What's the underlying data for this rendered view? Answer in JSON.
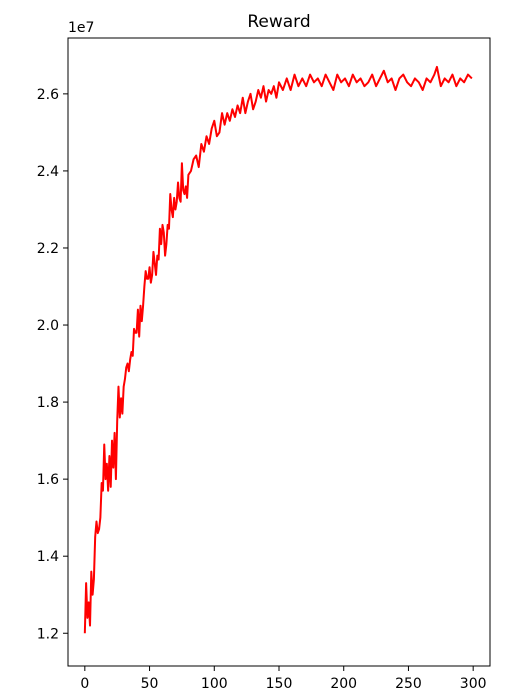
{
  "chart_data": {
    "type": "line",
    "title": "Reward",
    "xlabel": "",
    "ylabel": "",
    "y_scale_label": "1e7",
    "y_scale_factor": 10000000,
    "xlim": [
      -13,
      313
    ],
    "ylim": [
      1.115,
      2.745
    ],
    "x_ticks": [
      0,
      50,
      100,
      150,
      200,
      250,
      300
    ],
    "y_ticks": [
      1.2,
      1.4,
      1.6,
      1.8,
      2.0,
      2.2,
      2.4,
      2.6
    ],
    "x_tick_labels": [
      "0",
      "50",
      "100",
      "150",
      "200",
      "250",
      "300"
    ],
    "y_tick_labels": [
      "1.2",
      "1.4",
      "1.6",
      "1.8",
      "2.0",
      "2.2",
      "2.4",
      "2.6"
    ],
    "grid": false,
    "legend": "none",
    "series": [
      {
        "color": "#ff0000",
        "x": [
          0,
          1,
          2,
          3,
          4,
          5,
          6,
          7,
          8,
          9,
          10,
          11,
          12,
          13,
          14,
          15,
          16,
          17,
          18,
          19,
          20,
          21,
          22,
          23,
          24,
          25,
          26,
          27,
          28,
          29,
          30,
          31,
          32,
          33,
          34,
          35,
          36,
          37,
          38,
          39,
          40,
          41,
          42,
          43,
          44,
          45,
          46,
          47,
          48,
          49,
          50,
          51,
          52,
          53,
          54,
          55,
          56,
          57,
          58,
          59,
          60,
          61,
          62,
          63,
          64,
          65,
          66,
          67,
          68,
          69,
          70,
          71,
          72,
          73,
          74,
          75,
          76,
          77,
          78,
          79,
          80,
          82,
          84,
          86,
          88,
          90,
          92,
          94,
          96,
          98,
          100,
          102,
          104,
          106,
          108,
          110,
          112,
          114,
          116,
          118,
          120,
          122,
          124,
          126,
          128,
          130,
          132,
          134,
          136,
          138,
          140,
          142,
          144,
          146,
          148,
          150,
          153,
          156,
          159,
          162,
          165,
          168,
          171,
          174,
          177,
          180,
          183,
          186,
          189,
          192,
          195,
          198,
          201,
          204,
          207,
          210,
          213,
          216,
          219,
          222,
          225,
          228,
          231,
          234,
          237,
          240,
          243,
          246,
          249,
          252,
          255,
          258,
          261,
          264,
          267,
          270,
          272,
          275,
          278,
          281,
          284,
          287,
          290,
          293,
          296,
          299
        ],
        "values": [
          1.2,
          1.33,
          1.24,
          1.28,
          1.22,
          1.36,
          1.3,
          1.34,
          1.45,
          1.49,
          1.46,
          1.47,
          1.5,
          1.59,
          1.57,
          1.69,
          1.6,
          1.64,
          1.57,
          1.66,
          1.58,
          1.7,
          1.63,
          1.72,
          1.6,
          1.75,
          1.84,
          1.76,
          1.81,
          1.77,
          1.84,
          1.86,
          1.89,
          1.9,
          1.88,
          1.91,
          1.93,
          1.92,
          1.99,
          1.98,
          1.98,
          2.04,
          1.97,
          2.05,
          2.01,
          2.05,
          2.1,
          2.14,
          2.12,
          2.12,
          2.15,
          2.11,
          2.13,
          2.19,
          2.16,
          2.13,
          2.18,
          2.17,
          2.25,
          2.21,
          2.26,
          2.24,
          2.18,
          2.21,
          2.26,
          2.25,
          2.34,
          2.3,
          2.28,
          2.33,
          2.3,
          2.32,
          2.37,
          2.33,
          2.32,
          2.42,
          2.35,
          2.34,
          2.36,
          2.33,
          2.39,
          2.4,
          2.43,
          2.44,
          2.41,
          2.47,
          2.45,
          2.49,
          2.47,
          2.51,
          2.53,
          2.49,
          2.5,
          2.55,
          2.52,
          2.55,
          2.53,
          2.56,
          2.54,
          2.57,
          2.55,
          2.59,
          2.55,
          2.58,
          2.6,
          2.56,
          2.58,
          2.61,
          2.59,
          2.62,
          2.58,
          2.61,
          2.6,
          2.62,
          2.59,
          2.63,
          2.61,
          2.64,
          2.61,
          2.65,
          2.62,
          2.64,
          2.62,
          2.65,
          2.63,
          2.64,
          2.62,
          2.65,
          2.63,
          2.61,
          2.65,
          2.63,
          2.64,
          2.62,
          2.65,
          2.63,
          2.64,
          2.62,
          2.63,
          2.65,
          2.62,
          2.64,
          2.66,
          2.63,
          2.64,
          2.61,
          2.64,
          2.65,
          2.63,
          2.62,
          2.64,
          2.63,
          2.61,
          2.64,
          2.63,
          2.65,
          2.67,
          2.62,
          2.64,
          2.63,
          2.65,
          2.62,
          2.64,
          2.63,
          2.65,
          2.64
        ]
      }
    ]
  }
}
